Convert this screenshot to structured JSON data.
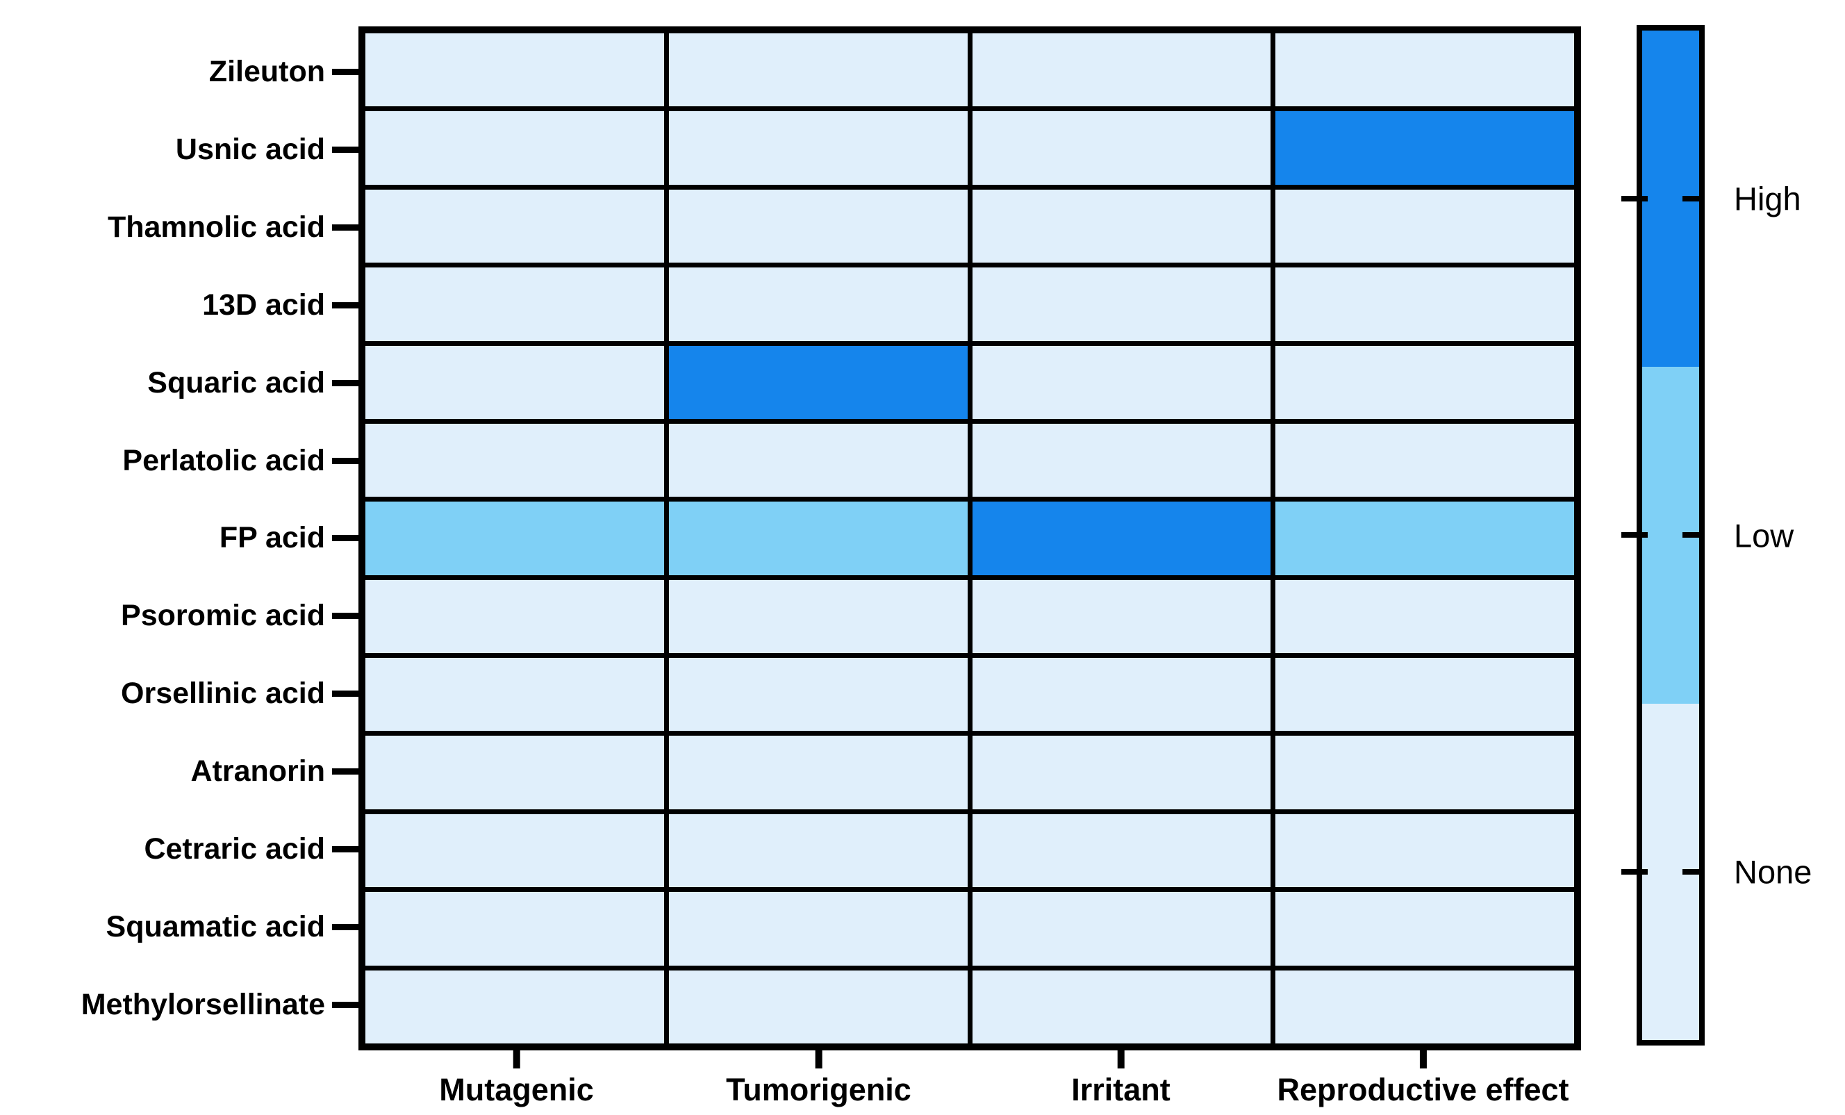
{
  "figure": {
    "description": "Toxicity risk heatmap of lichen compounds",
    "background": "#ffffff",
    "border_color": "#000000"
  },
  "chart_data": {
    "type": "heatmap",
    "title": "",
    "rows": [
      "Zileuton",
      "Usnic acid",
      "Thamnolic acid",
      "13D acid",
      "Squaric acid",
      "Perlatolic acid",
      "FP acid",
      "Psoromic acid",
      "Orsellinic acid",
      "Atranorin",
      "Cetraric acid",
      "Squamatic acid",
      "Methylorsellinate"
    ],
    "columns": [
      "Mutagenic",
      "Tumorigenic",
      "Irritant",
      "Reproductive effect"
    ],
    "values": [
      [
        "None",
        "None",
        "None",
        "None"
      ],
      [
        "None",
        "None",
        "None",
        "High"
      ],
      [
        "None",
        "None",
        "None",
        "None"
      ],
      [
        "None",
        "None",
        "None",
        "None"
      ],
      [
        "None",
        "High",
        "None",
        "None"
      ],
      [
        "None",
        "None",
        "None",
        "None"
      ],
      [
        "Low",
        "Low",
        "High",
        "Low"
      ],
      [
        "None",
        "None",
        "None",
        "None"
      ],
      [
        "None",
        "None",
        "None",
        "None"
      ],
      [
        "None",
        "None",
        "None",
        "None"
      ],
      [
        "None",
        "None",
        "None",
        "None"
      ],
      [
        "None",
        "None",
        "None",
        "None"
      ],
      [
        "None",
        "None",
        "None",
        "None"
      ]
    ],
    "legend": {
      "position": "right",
      "labels": [
        "High",
        "Low",
        "None"
      ]
    },
    "colors": {
      "High": "#1585EC",
      "Low": "#7FD0F6",
      "None": "#E0EFFB"
    },
    "grid": "on",
    "xlabel": "",
    "ylabel": ""
  }
}
